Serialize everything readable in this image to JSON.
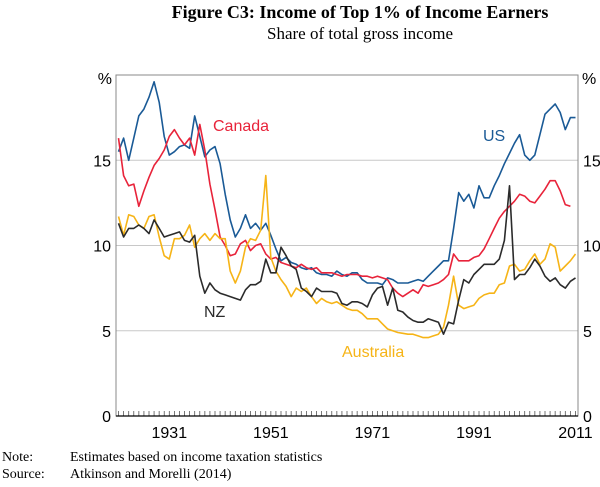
{
  "chart_data": {
    "type": "line",
    "title": "Figure C3: Income of Top 1% of Income Earners",
    "subtitle": "Share of total gross income",
    "ylabel_left": "%",
    "ylabel_right": "%",
    "ylim": [
      0,
      20
    ],
    "yticks": [
      0,
      5,
      10,
      15
    ],
    "xlim": [
      1920.5,
      2011.5
    ],
    "xticks": [
      1931,
      1951,
      1971,
      1991,
      2011
    ],
    "grid": true,
    "start_year": 1921,
    "series": [
      {
        "name": "US",
        "color": "#1a5a96",
        "values": [
          15.5,
          16.3,
          15.0,
          16.3,
          17.6,
          18.0,
          18.7,
          19.6,
          18.4,
          16.4,
          15.3,
          15.5,
          15.8,
          15.9,
          15.7,
          17.6,
          16.4,
          15.2,
          15.6,
          15.8,
          14.8,
          13.0,
          11.5,
          10.5,
          11.0,
          11.8,
          11.0,
          11.3,
          10.9,
          11.3,
          10.6,
          9.8,
          9.1,
          9.3,
          9.0,
          8.9,
          8.7,
          8.6,
          8.7,
          8.4,
          8.3,
          8.3,
          8.2,
          8.5,
          8.3,
          8.2,
          8.4,
          8.4,
          8.0,
          7.8,
          7.8,
          7.8,
          7.7,
          8.1,
          8.0,
          7.8,
          7.8,
          7.8,
          7.9,
          8.0,
          7.9,
          8.2,
          8.5,
          8.8,
          9.1,
          9.1,
          11.0,
          13.1,
          12.6,
          13.0,
          12.2,
          13.5,
          12.8,
          12.8,
          13.5,
          14.1,
          14.8,
          15.4,
          16.0,
          16.5,
          15.3,
          15.0,
          15.3,
          16.5,
          17.7,
          18.0,
          18.3,
          17.8,
          16.8,
          17.5,
          17.5
        ]
      },
      {
        "name": "Canada",
        "color": "#e8233a",
        "values": [
          16.3,
          14.1,
          13.5,
          13.6,
          12.3,
          13.2,
          14.0,
          14.7,
          15.1,
          15.6,
          16.4,
          16.8,
          16.3,
          15.9,
          16.3,
          15.3,
          17.1,
          15.6,
          13.6,
          12.1,
          10.5,
          10.0,
          9.4,
          9.5,
          10.1,
          10.3,
          9.7,
          10.0,
          10.1,
          9.5,
          9.2,
          9.3,
          9.0,
          8.9,
          8.8,
          8.7,
          8.9,
          8.7,
          8.6,
          8.7,
          8.4,
          8.4,
          8.4,
          8.3,
          8.2,
          8.3,
          8.3,
          8.3,
          8.2,
          8.2,
          8.1,
          8.2,
          8.1,
          8.0,
          7.5,
          7.2,
          7.0,
          7.2,
          7.4,
          7.2,
          7.7,
          7.6,
          7.7,
          7.8,
          8.0,
          8.3,
          9.5,
          9.1,
          9.1,
          9.1,
          9.3,
          9.4,
          9.8,
          10.4,
          11.0,
          11.6,
          12.0,
          12.3,
          12.6,
          13.0,
          12.9,
          12.6,
          12.5,
          12.9,
          13.3,
          13.8,
          13.8,
          13.2,
          12.4,
          12.3
        ]
      },
      {
        "name": "Australia",
        "color": "#f6b417",
        "values": [
          11.7,
          10.6,
          11.8,
          11.7,
          11.2,
          11.0,
          11.7,
          11.8,
          10.5,
          9.4,
          9.2,
          10.4,
          10.4,
          10.6,
          11.2,
          9.9,
          10.4,
          10.7,
          10.3,
          10.7,
          10.4,
          10.4,
          8.5,
          7.8,
          8.5,
          9.9,
          10.4,
          10.3,
          10.9,
          14.1,
          9.3,
          8.5,
          8.0,
          7.6,
          7.0,
          7.5,
          7.3,
          7.5,
          7.0,
          6.6,
          6.9,
          6.7,
          6.6,
          6.7,
          6.5,
          6.3,
          6.2,
          6.2,
          6.0,
          5.7,
          5.7,
          5.7,
          5.4,
          5.1,
          5.0,
          4.9,
          4.85,
          4.8,
          4.8,
          4.7,
          4.6,
          4.6,
          4.7,
          4.8,
          5.2,
          6.5,
          8.2,
          6.5,
          6.3,
          6.4,
          6.5,
          6.9,
          7.1,
          7.2,
          7.2,
          7.7,
          7.8,
          8.8,
          8.9,
          8.5,
          8.6,
          9.1,
          9.5,
          8.9,
          9.2,
          10.1,
          9.9,
          8.5,
          8.8,
          9.1,
          9.5
        ]
      },
      {
        "name": "NZ",
        "color": "#2b2b2b",
        "values": [
          11.3,
          10.5,
          11.0,
          11.0,
          11.2,
          11.0,
          10.7,
          11.5,
          11.0,
          10.5,
          10.6,
          10.7,
          10.8,
          10.3,
          10.2,
          10.6,
          8.2,
          7.2,
          7.8,
          7.4,
          7.2,
          7.1,
          7.0,
          6.9,
          6.8,
          7.4,
          7.7,
          7.7,
          7.9,
          9.2,
          8.4,
          8.4,
          9.9,
          9.4,
          8.8,
          8.6,
          7.5,
          7.3,
          7.0,
          7.5,
          7.3,
          7.3,
          7.3,
          7.2,
          6.6,
          6.5,
          6.7,
          6.7,
          6.6,
          6.4,
          7.1,
          7.5,
          7.6,
          6.5,
          7.5,
          6.2,
          6.1,
          5.8,
          5.6,
          5.5,
          5.5,
          5.7,
          5.6,
          5.5,
          4.8,
          5.5,
          5.4,
          6.8,
          8.0,
          7.8,
          8.3,
          8.6,
          8.9,
          8.9,
          8.9,
          9.2,
          10.3,
          13.5,
          8.0,
          8.3,
          8.3,
          8.7,
          9.2,
          8.8,
          8.2,
          7.9,
          8.1,
          7.7,
          7.5,
          7.9,
          8.1
        ]
      }
    ]
  },
  "notes": {
    "note_label": "Note:",
    "note_text": "Estimates based on income taxation statistics",
    "source_label": "Source:",
    "source_text": "Atkinson and Morelli (2014)"
  }
}
